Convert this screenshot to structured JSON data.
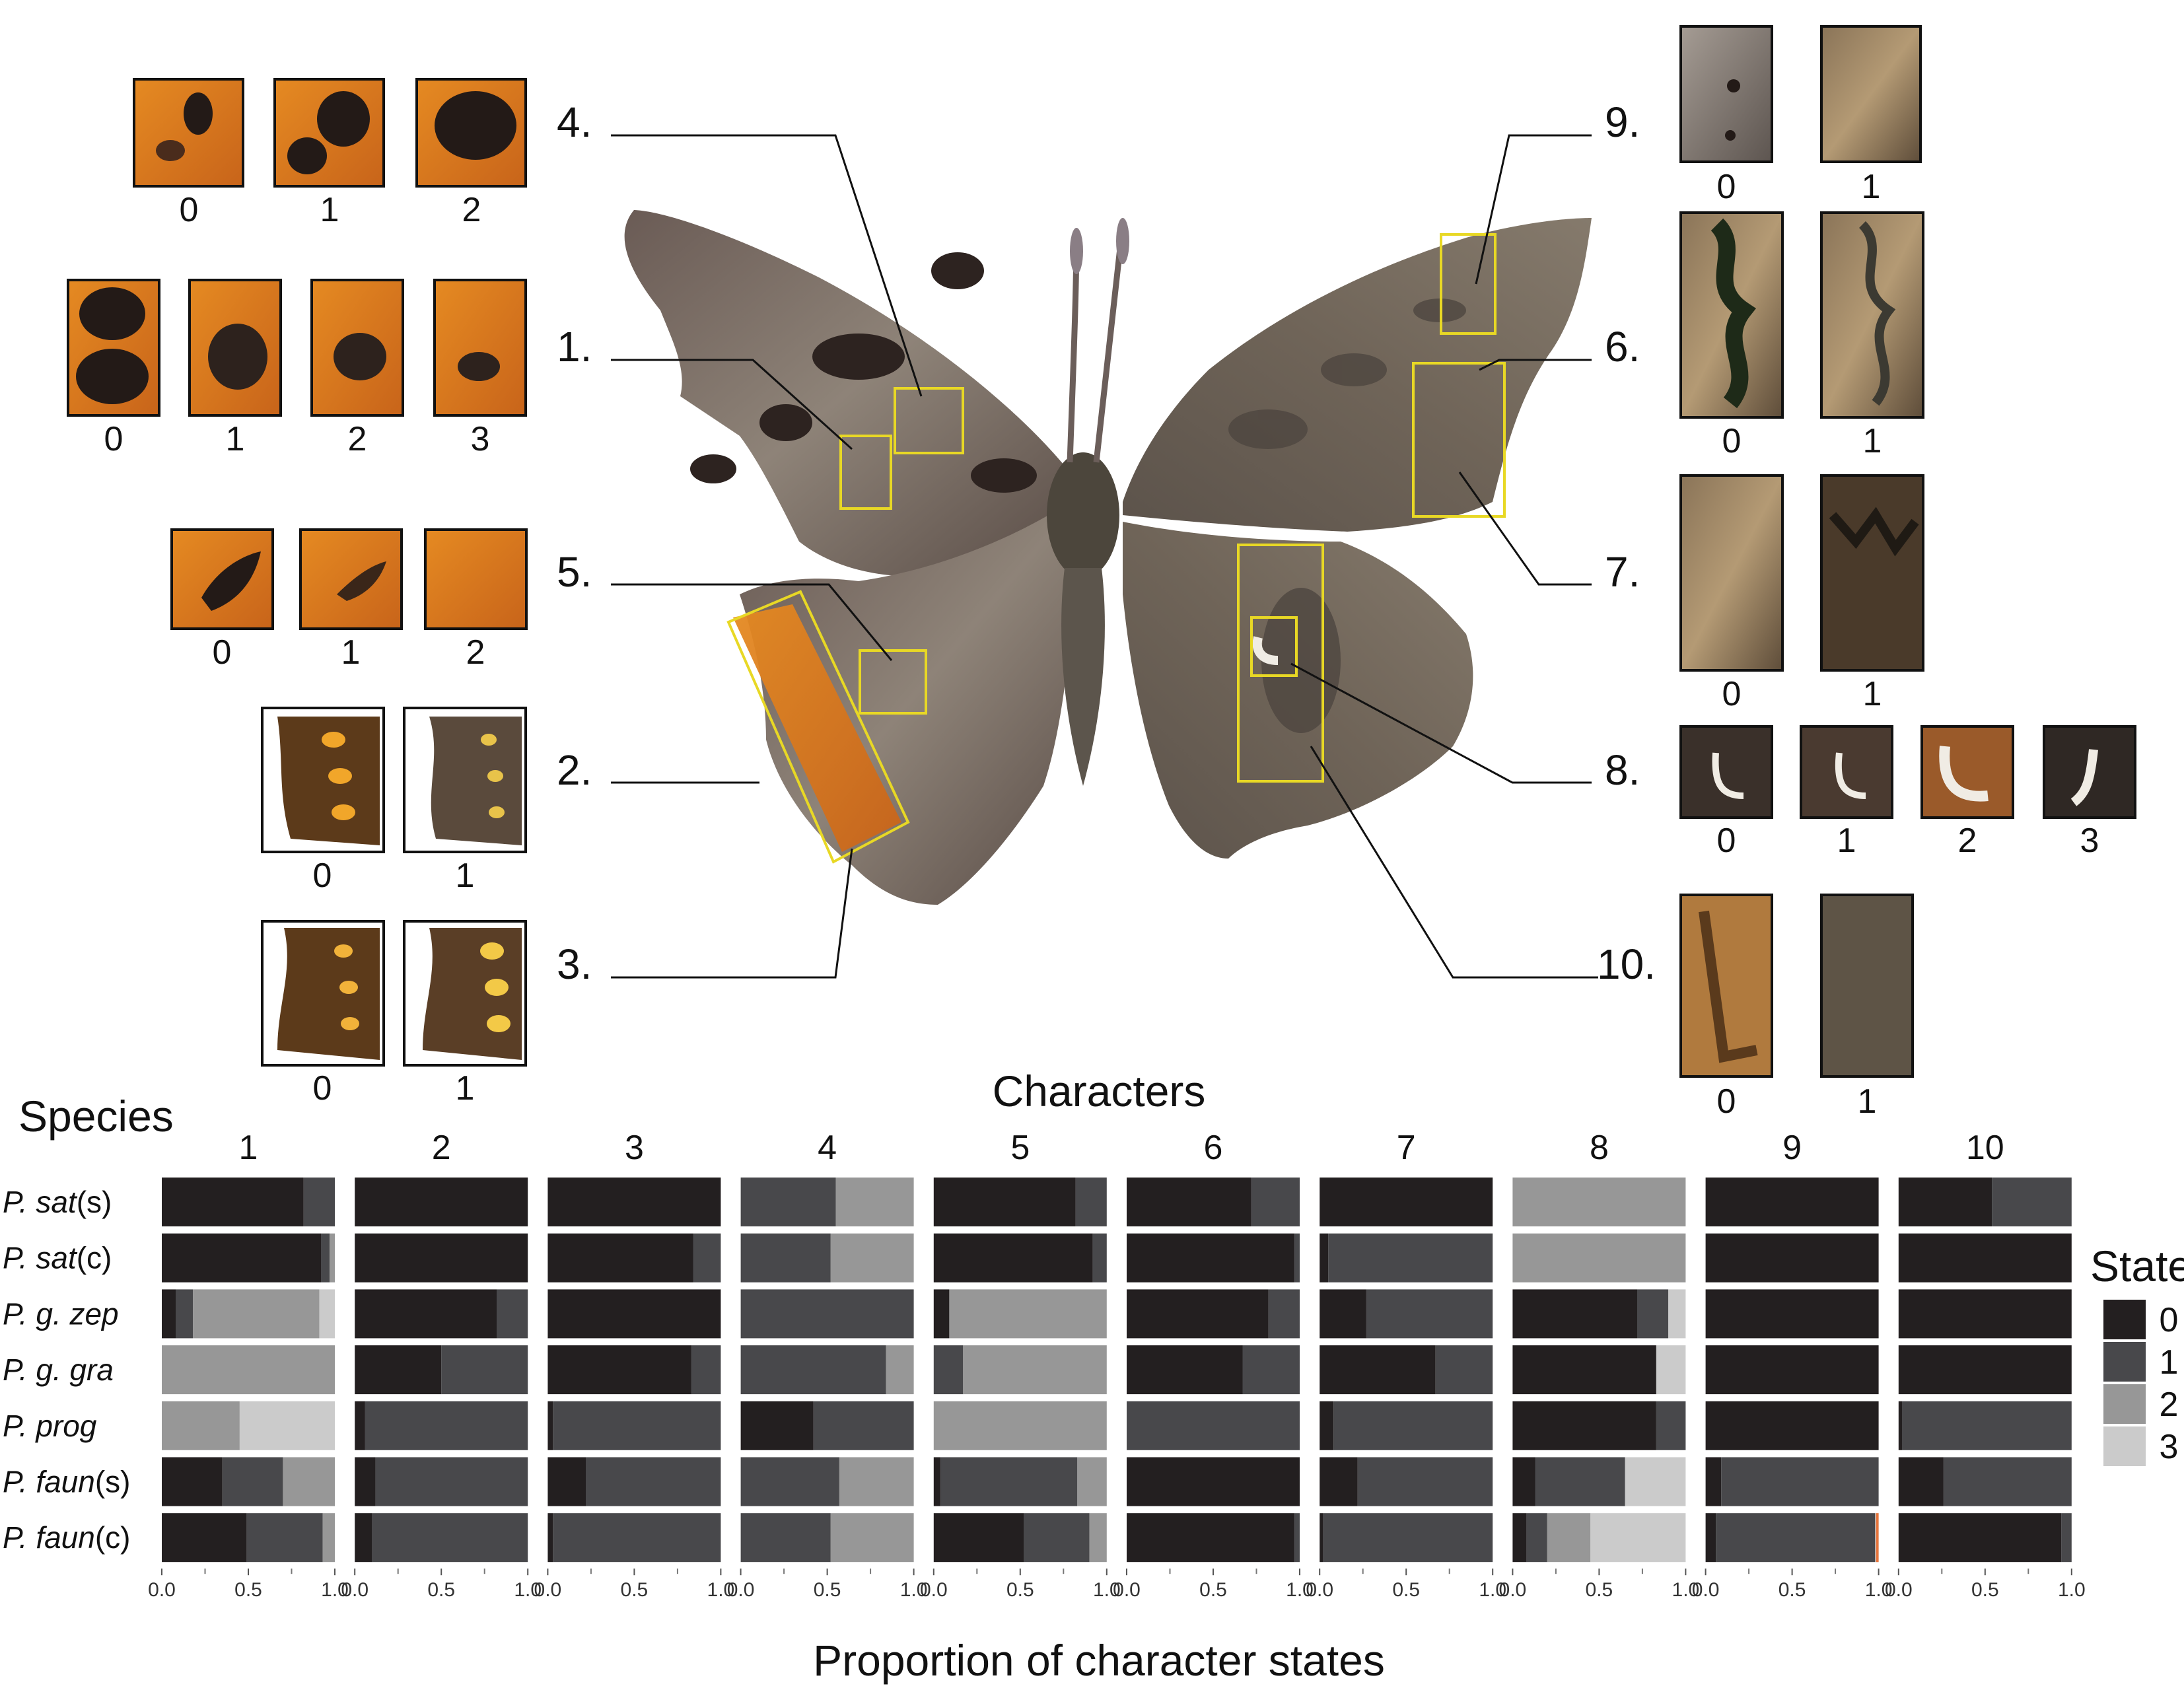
{
  "figure": {
    "characters_title": "Characters",
    "species_title": "Species",
    "x_axis_label": "Proportion of character states",
    "legend_title": "State"
  },
  "callouts": {
    "left": [
      "4.",
      "1.",
      "5.",
      "2.",
      "3."
    ],
    "right": [
      "9.",
      "6.",
      "7.",
      "8.",
      "10."
    ]
  },
  "thumbnails": {
    "char4_states": [
      "0",
      "1",
      "2"
    ],
    "char1_states": [
      "0",
      "1",
      "2",
      "3"
    ],
    "char5_states": [
      "0",
      "1",
      "2"
    ],
    "char2_states": [
      "0",
      "1"
    ],
    "char3_states": [
      "0",
      "1"
    ],
    "char9_states": [
      "0",
      "1"
    ],
    "char6_states": [
      "0",
      "1"
    ],
    "char7_states": [
      "0",
      "1"
    ],
    "char8_states": [
      "0",
      "1",
      "2",
      "3"
    ],
    "char10_states": [
      "0",
      "1"
    ]
  },
  "colors": {
    "state0": "#231f20",
    "state1": "#48484b",
    "state2": "#979797",
    "state3": "#cbcbcb",
    "highlight_box": "#e8d825",
    "orange_mark": "#e8743b"
  },
  "chart_data": {
    "type": "bar",
    "orientation": "horizontal-stacked-faceted",
    "facets": [
      "1",
      "2",
      "3",
      "4",
      "5",
      "6",
      "7",
      "8",
      "9",
      "10"
    ],
    "species": [
      "P. sat(s)",
      "P. sat(c)",
      "P. g. zep",
      "P. g. gra",
      "P. prog",
      "P. faun(s)",
      "P. faun(c)"
    ],
    "species_parts": [
      {
        "italic": "P. sat",
        "plain": "(s)"
      },
      {
        "italic": "P. sat",
        "plain": "(c)"
      },
      {
        "italic": "P. g. zep",
        "plain": ""
      },
      {
        "italic": "P. g. gra",
        "plain": ""
      },
      {
        "italic": "P. prog",
        "plain": ""
      },
      {
        "italic": "P. faun",
        "plain": "(s)"
      },
      {
        "italic": "P. faun",
        "plain": "(c)"
      }
    ],
    "states": [
      "0",
      "1",
      "2",
      "3"
    ],
    "xlim": [
      0,
      1
    ],
    "x_ticks": [
      "0.0",
      "0.5",
      "1.0"
    ],
    "legend_position": "right",
    "values": {
      "1": [
        [
          0.82,
          0.18,
          0,
          0
        ],
        [
          0.92,
          0.05,
          0.03,
          0
        ],
        [
          0.08,
          0.1,
          0.73,
          0.09
        ],
        [
          0,
          0,
          1.0,
          0
        ],
        [
          0,
          0,
          0.45,
          0.55
        ],
        [
          0.35,
          0.35,
          0.3,
          0
        ],
        [
          0.49,
          0.44,
          0.07,
          0
        ]
      ],
      "2": [
        [
          1.0,
          0,
          0,
          0
        ],
        [
          1.0,
          0,
          0,
          0
        ],
        [
          0.82,
          0.18,
          0,
          0
        ],
        [
          0.5,
          0.5,
          0,
          0
        ],
        [
          0.06,
          0.94,
          0,
          0
        ],
        [
          0.12,
          0.88,
          0,
          0
        ],
        [
          0.1,
          0.9,
          0,
          0
        ]
      ],
      "3": [
        [
          1.0,
          0,
          0,
          0
        ],
        [
          0.84,
          0.16,
          0,
          0
        ],
        [
          1.0,
          0,
          0,
          0
        ],
        [
          0.83,
          0.17,
          0,
          0
        ],
        [
          0.03,
          0.97,
          0,
          0
        ],
        [
          0.22,
          0.78,
          0,
          0
        ],
        [
          0.03,
          0.97,
          0,
          0
        ]
      ],
      "4": [
        [
          0,
          0.55,
          0.45,
          0
        ],
        [
          0,
          0.52,
          0.48,
          0
        ],
        [
          0,
          1.0,
          0,
          0
        ],
        [
          0,
          0.84,
          0.16,
          0
        ],
        [
          0.42,
          0.58,
          0,
          0
        ],
        [
          0,
          0.57,
          0.43,
          0
        ],
        [
          0,
          0.52,
          0.48,
          0
        ]
      ],
      "5": [
        [
          0.82,
          0.18,
          0,
          0
        ],
        [
          0.92,
          0.08,
          0,
          0
        ],
        [
          0.09,
          0,
          0.91,
          0
        ],
        [
          0,
          0.17,
          0.83,
          0
        ],
        [
          0,
          0,
          1.0,
          0
        ],
        [
          0.04,
          0.79,
          0.17,
          0
        ],
        [
          0.52,
          0.38,
          0.1,
          0
        ]
      ],
      "6": [
        [
          0.72,
          0.28,
          0,
          0
        ],
        [
          0.97,
          0.03,
          0,
          0
        ],
        [
          0.82,
          0.18,
          0,
          0
        ],
        [
          0.67,
          0.33,
          0,
          0
        ],
        [
          0,
          1.0,
          0,
          0
        ],
        [
          1.0,
          0,
          0,
          0
        ],
        [
          0.97,
          0.03,
          0,
          0
        ]
      ],
      "7": [
        [
          1.0,
          0,
          0,
          0
        ],
        [
          0.05,
          0.95,
          0,
          0
        ],
        [
          0.27,
          0.73,
          0,
          0
        ],
        [
          0.67,
          0.33,
          0,
          0
        ],
        [
          0.08,
          0.92,
          0,
          0
        ],
        [
          0.22,
          0.78,
          0,
          0
        ],
        [
          0.02,
          0.98,
          0,
          0
        ]
      ],
      "8": [
        [
          0,
          0,
          1.0,
          0
        ],
        [
          0,
          0,
          1.0,
          0
        ],
        [
          0.72,
          0.18,
          0,
          0.1
        ],
        [
          0.83,
          0,
          0,
          0.17
        ],
        [
          0.83,
          0.17,
          0,
          0
        ],
        [
          0.13,
          0.52,
          0,
          0.35
        ],
        [
          0.08,
          0.12,
          0.25,
          0.55
        ]
      ],
      "9": [
        [
          1.0,
          0,
          0,
          0
        ],
        [
          1.0,
          0,
          0,
          0
        ],
        [
          1.0,
          0,
          0,
          0
        ],
        [
          1.0,
          0,
          0,
          0
        ],
        [
          1.0,
          0,
          0,
          0
        ],
        [
          0.09,
          0.91,
          0,
          0
        ],
        [
          0.06,
          0.92,
          0,
          0.02
        ]
      ],
      "10": [
        [
          0.54,
          0.46,
          0,
          0
        ],
        [
          1.0,
          0,
          0,
          0
        ],
        [
          1.0,
          0,
          0,
          0
        ],
        [
          1.0,
          0,
          0,
          0
        ],
        [
          0.02,
          0.98,
          0,
          0
        ],
        [
          0.26,
          0.74,
          0,
          0
        ],
        [
          0.94,
          0.06,
          0,
          0
        ]
      ]
    }
  }
}
